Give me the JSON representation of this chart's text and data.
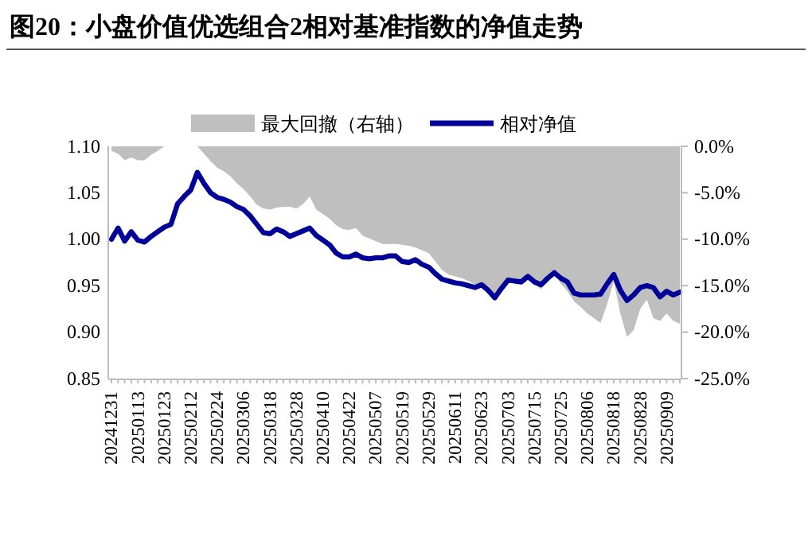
{
  "chart_data": {
    "type": "line",
    "title": "图20：小盘价值优选组合2相对基准指数的净值走势",
    "categories": [
      "20241231",
      null,
      null,
      null,
      "20250113",
      null,
      null,
      null,
      "20250123",
      null,
      null,
      null,
      "20250212",
      null,
      null,
      null,
      "20250224",
      null,
      null,
      null,
      "20250306",
      null,
      null,
      null,
      "20250318",
      null,
      null,
      null,
      "20250328",
      null,
      null,
      null,
      "20250410",
      null,
      null,
      null,
      "20250422",
      null,
      null,
      null,
      "20250507",
      null,
      null,
      null,
      "20250519",
      null,
      null,
      null,
      "20250529",
      null,
      null,
      null,
      "20250611",
      null,
      null,
      null,
      "20250623",
      null,
      null,
      null,
      "20250703",
      null,
      null,
      null,
      "20250715",
      null,
      null,
      null,
      "20250725",
      null,
      null,
      null,
      "20250806",
      null,
      null,
      null,
      "20250818",
      null,
      null,
      null,
      "20250828",
      null,
      null,
      null,
      "20250909",
      null,
      null
    ],
    "series": [
      {
        "name": "最大回撤（右轴）",
        "type": "area",
        "axis": "y2",
        "color": "#bfbfbf",
        "values": [
          -0.5,
          -0.8,
          -1.5,
          -1.2,
          -1.5,
          -1.5,
          -0.9,
          -0.5,
          0,
          0,
          0,
          0,
          0,
          0,
          -0.8,
          -1.6,
          -2.3,
          -2.7,
          -3.2,
          -4.0,
          -4.6,
          -5.4,
          -6.3,
          -6.7,
          -6.8,
          -6.6,
          -6.5,
          -6.5,
          -6.7,
          -6.2,
          -5.4,
          -6.8,
          -7.3,
          -7.8,
          -8.5,
          -8.9,
          -9.0,
          -8.8,
          -9.6,
          -9.9,
          -10.2,
          -10.5,
          -10.5,
          -10.5,
          -10.6,
          -10.7,
          -10.9,
          -11.2,
          -11.5,
          -12.4,
          -13.3,
          -13.8,
          -14.0,
          -14.2,
          -14.5,
          -14.9,
          -15.2,
          -15.5,
          -15.9,
          -15.2,
          -14.6,
          -14.4,
          -14.3,
          -14.2,
          -14.8,
          -15.4,
          -14.3,
          -13.5,
          -14.8,
          -15.6,
          -16.7,
          -17.3,
          -18.0,
          -18.5,
          -19.0,
          -17.0,
          -14.5,
          -18.0,
          -20.5,
          -19.8,
          -17.5,
          -16.5,
          -18.5,
          -18.8,
          -18.0,
          -18.8,
          -19.1
        ]
      },
      {
        "name": "相对净值",
        "color": "#000099",
        "values": [
          1.0,
          1.012,
          0.998,
          1.008,
          0.999,
          0.997,
          1.003,
          1.008,
          1.013,
          1.016,
          1.038,
          1.046,
          1.053,
          1.072,
          1.06,
          1.05,
          1.045,
          1.043,
          1.04,
          1.035,
          1.032,
          1.025,
          1.016,
          1.007,
          1.006,
          1.011,
          1.008,
          1.003,
          1.006,
          1.009,
          1.012,
          1.004,
          0.999,
          0.994,
          0.985,
          0.981,
          0.981,
          0.984,
          0.98,
          0.979,
          0.98,
          0.98,
          0.982,
          0.982,
          0.976,
          0.975,
          0.978,
          0.973,
          0.97,
          0.963,
          0.957,
          0.955,
          0.953,
          0.952,
          0.95,
          0.948,
          0.951,
          0.945,
          0.937,
          0.947,
          0.956,
          0.955,
          0.954,
          0.96,
          0.954,
          0.951,
          0.958,
          0.964,
          0.958,
          0.954,
          0.942,
          0.94,
          0.94,
          0.94,
          0.941,
          0.952,
          0.962,
          0.945,
          0.934,
          0.94,
          0.948,
          0.95,
          0.948,
          0.938,
          0.944,
          0.94,
          0.943
        ]
      }
    ],
    "ylim": [
      0.85,
      1.1
    ],
    "yticks": [
      0.85,
      {
        "value": 0.9,
        "label": "0.90"
      },
      0.95,
      {
        "value": 1.0,
        "label": "1.00"
      },
      1.05,
      {
        "value": 1.1,
        "label": "1.10"
      }
    ],
    "y2lim": [
      -25,
      0
    ],
    "y2ticks": [
      {
        "value": -25,
        "label": "-25.0%"
      },
      {
        "value": -20,
        "label": "-20.0%"
      },
      {
        "value": -15,
        "label": "-15.0%"
      },
      {
        "value": -10,
        "label": "-10.0%"
      },
      {
        "value": -5,
        "label": "-5.0%"
      },
      {
        "value": 0,
        "label": "0.0%"
      }
    ],
    "grid": false,
    "legend": "top"
  }
}
